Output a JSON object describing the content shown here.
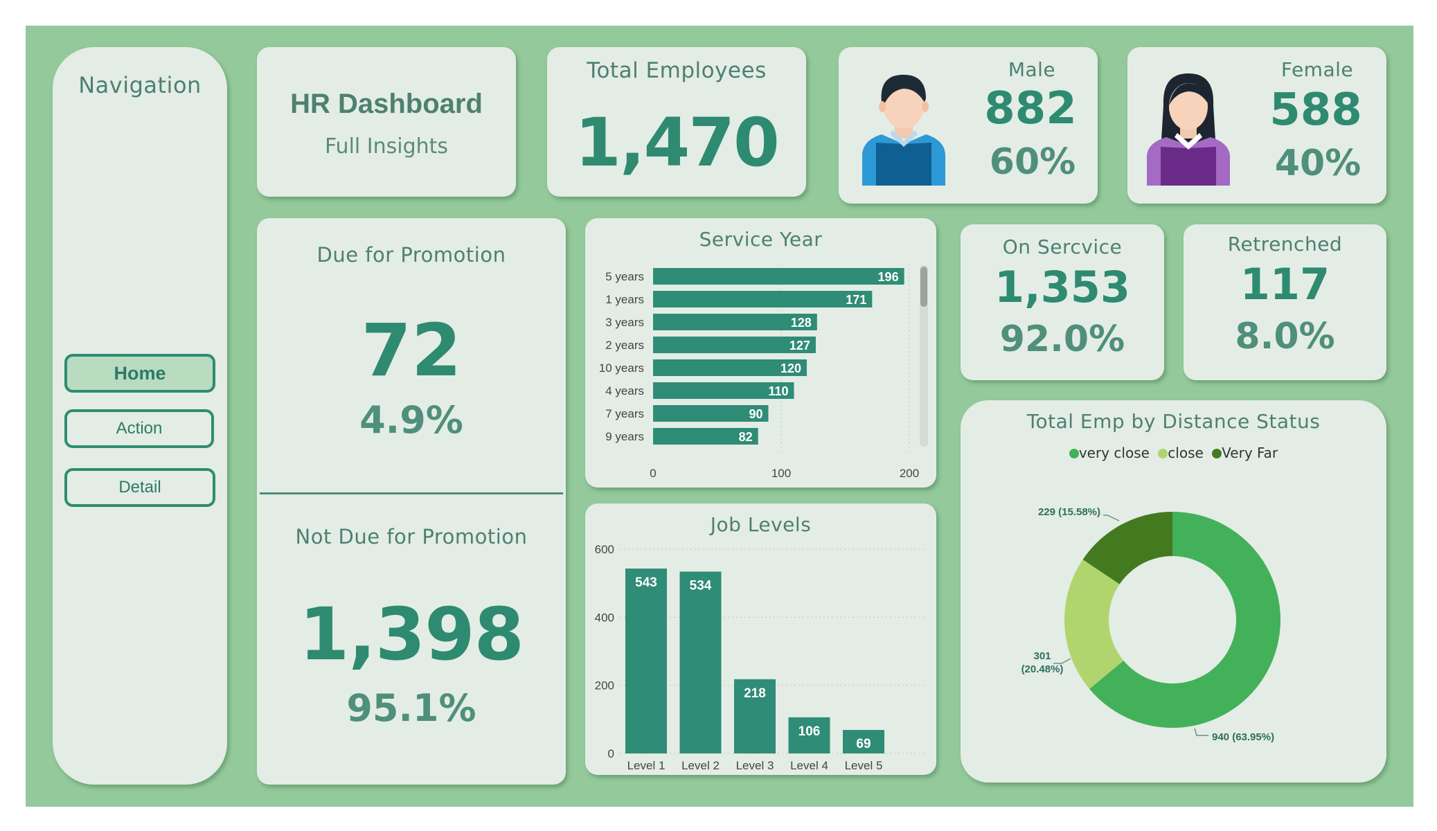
{
  "navigation": {
    "title": "Navigation",
    "buttons": [
      "Home",
      "Action",
      "Detail"
    ]
  },
  "header": {
    "title": "HR Dashboard",
    "subtitle": "Full Insights"
  },
  "total_employees": {
    "label": "Total Employees",
    "value": "1,470"
  },
  "male": {
    "label": "Male",
    "value": "882",
    "pct": "60%"
  },
  "female": {
    "label": "Female",
    "value": "588",
    "pct": "40%"
  },
  "due_promotion": {
    "label": "Due for Promotion",
    "value": "72",
    "pct": "4.9%"
  },
  "not_due_promotion": {
    "label": "Not Due for Promotion",
    "value": "1,398",
    "pct": "95.1%"
  },
  "on_service": {
    "label": "On Sercvice",
    "value": "1,353",
    "pct": "92.0%"
  },
  "retrenched": {
    "label": "Retrenched",
    "value": "117",
    "pct": "8.0%"
  },
  "colors": {
    "bar": "#2f8c76",
    "very_close": "#43b05a",
    "close": "#b0d56e",
    "very_far": "#447a1f"
  },
  "chart_data": [
    {
      "type": "bar",
      "orientation": "horizontal",
      "title": "Service Year",
      "categories": [
        "5 years",
        "1 years",
        "3 years",
        "2 years",
        "10 years",
        "4 years",
        "7 years",
        "9 years"
      ],
      "values": [
        196,
        171,
        128,
        127,
        120,
        110,
        90,
        82
      ],
      "xlim": [
        0,
        200
      ],
      "xticks": [
        "0",
        "100",
        "200"
      ]
    },
    {
      "type": "bar",
      "title": "Job Levels",
      "categories": [
        "Level 1",
        "Level 2",
        "Level 3",
        "Level 4",
        "Level 5"
      ],
      "values": [
        543,
        534,
        218,
        106,
        69
      ],
      "ylim": [
        0,
        600
      ],
      "yticks": [
        "0",
        "200",
        "400",
        "600"
      ]
    },
    {
      "type": "pie",
      "title": "Total Emp by Distance Status",
      "labels": [
        "very close",
        "close",
        "Very Far"
      ],
      "values": [
        940,
        301,
        229
      ],
      "percent_labels": [
        "940 (63.95%)",
        "301",
        "(20.48%)",
        "229 (15.58%)"
      ]
    }
  ]
}
